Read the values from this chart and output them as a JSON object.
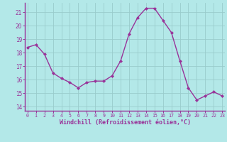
{
  "x": [
    0,
    1,
    2,
    3,
    4,
    5,
    6,
    7,
    8,
    9,
    10,
    11,
    12,
    13,
    14,
    15,
    16,
    17,
    18,
    19,
    20,
    21,
    22,
    23
  ],
  "y": [
    18.4,
    18.6,
    17.9,
    16.5,
    16.1,
    15.8,
    15.4,
    15.8,
    15.9,
    15.9,
    16.3,
    17.4,
    19.4,
    20.6,
    21.3,
    21.3,
    20.4,
    19.5,
    17.4,
    15.4,
    14.5,
    14.8,
    15.1,
    14.8
  ],
  "xlabel": "Windchill (Refroidissement éolien,°C)",
  "yticks": [
    14,
    15,
    16,
    17,
    18,
    19,
    20,
    21
  ],
  "xticks": [
    0,
    1,
    2,
    3,
    4,
    5,
    6,
    7,
    8,
    9,
    10,
    11,
    12,
    13,
    14,
    15,
    16,
    17,
    18,
    19,
    20,
    21,
    22,
    23
  ],
  "line_color": "#993399",
  "marker_color": "#993399",
  "bg_color": "#b3e8e8",
  "grid_color": "#99cccc",
  "spine_color": "#993399",
  "tick_color": "#993399",
  "label_color": "#993399"
}
